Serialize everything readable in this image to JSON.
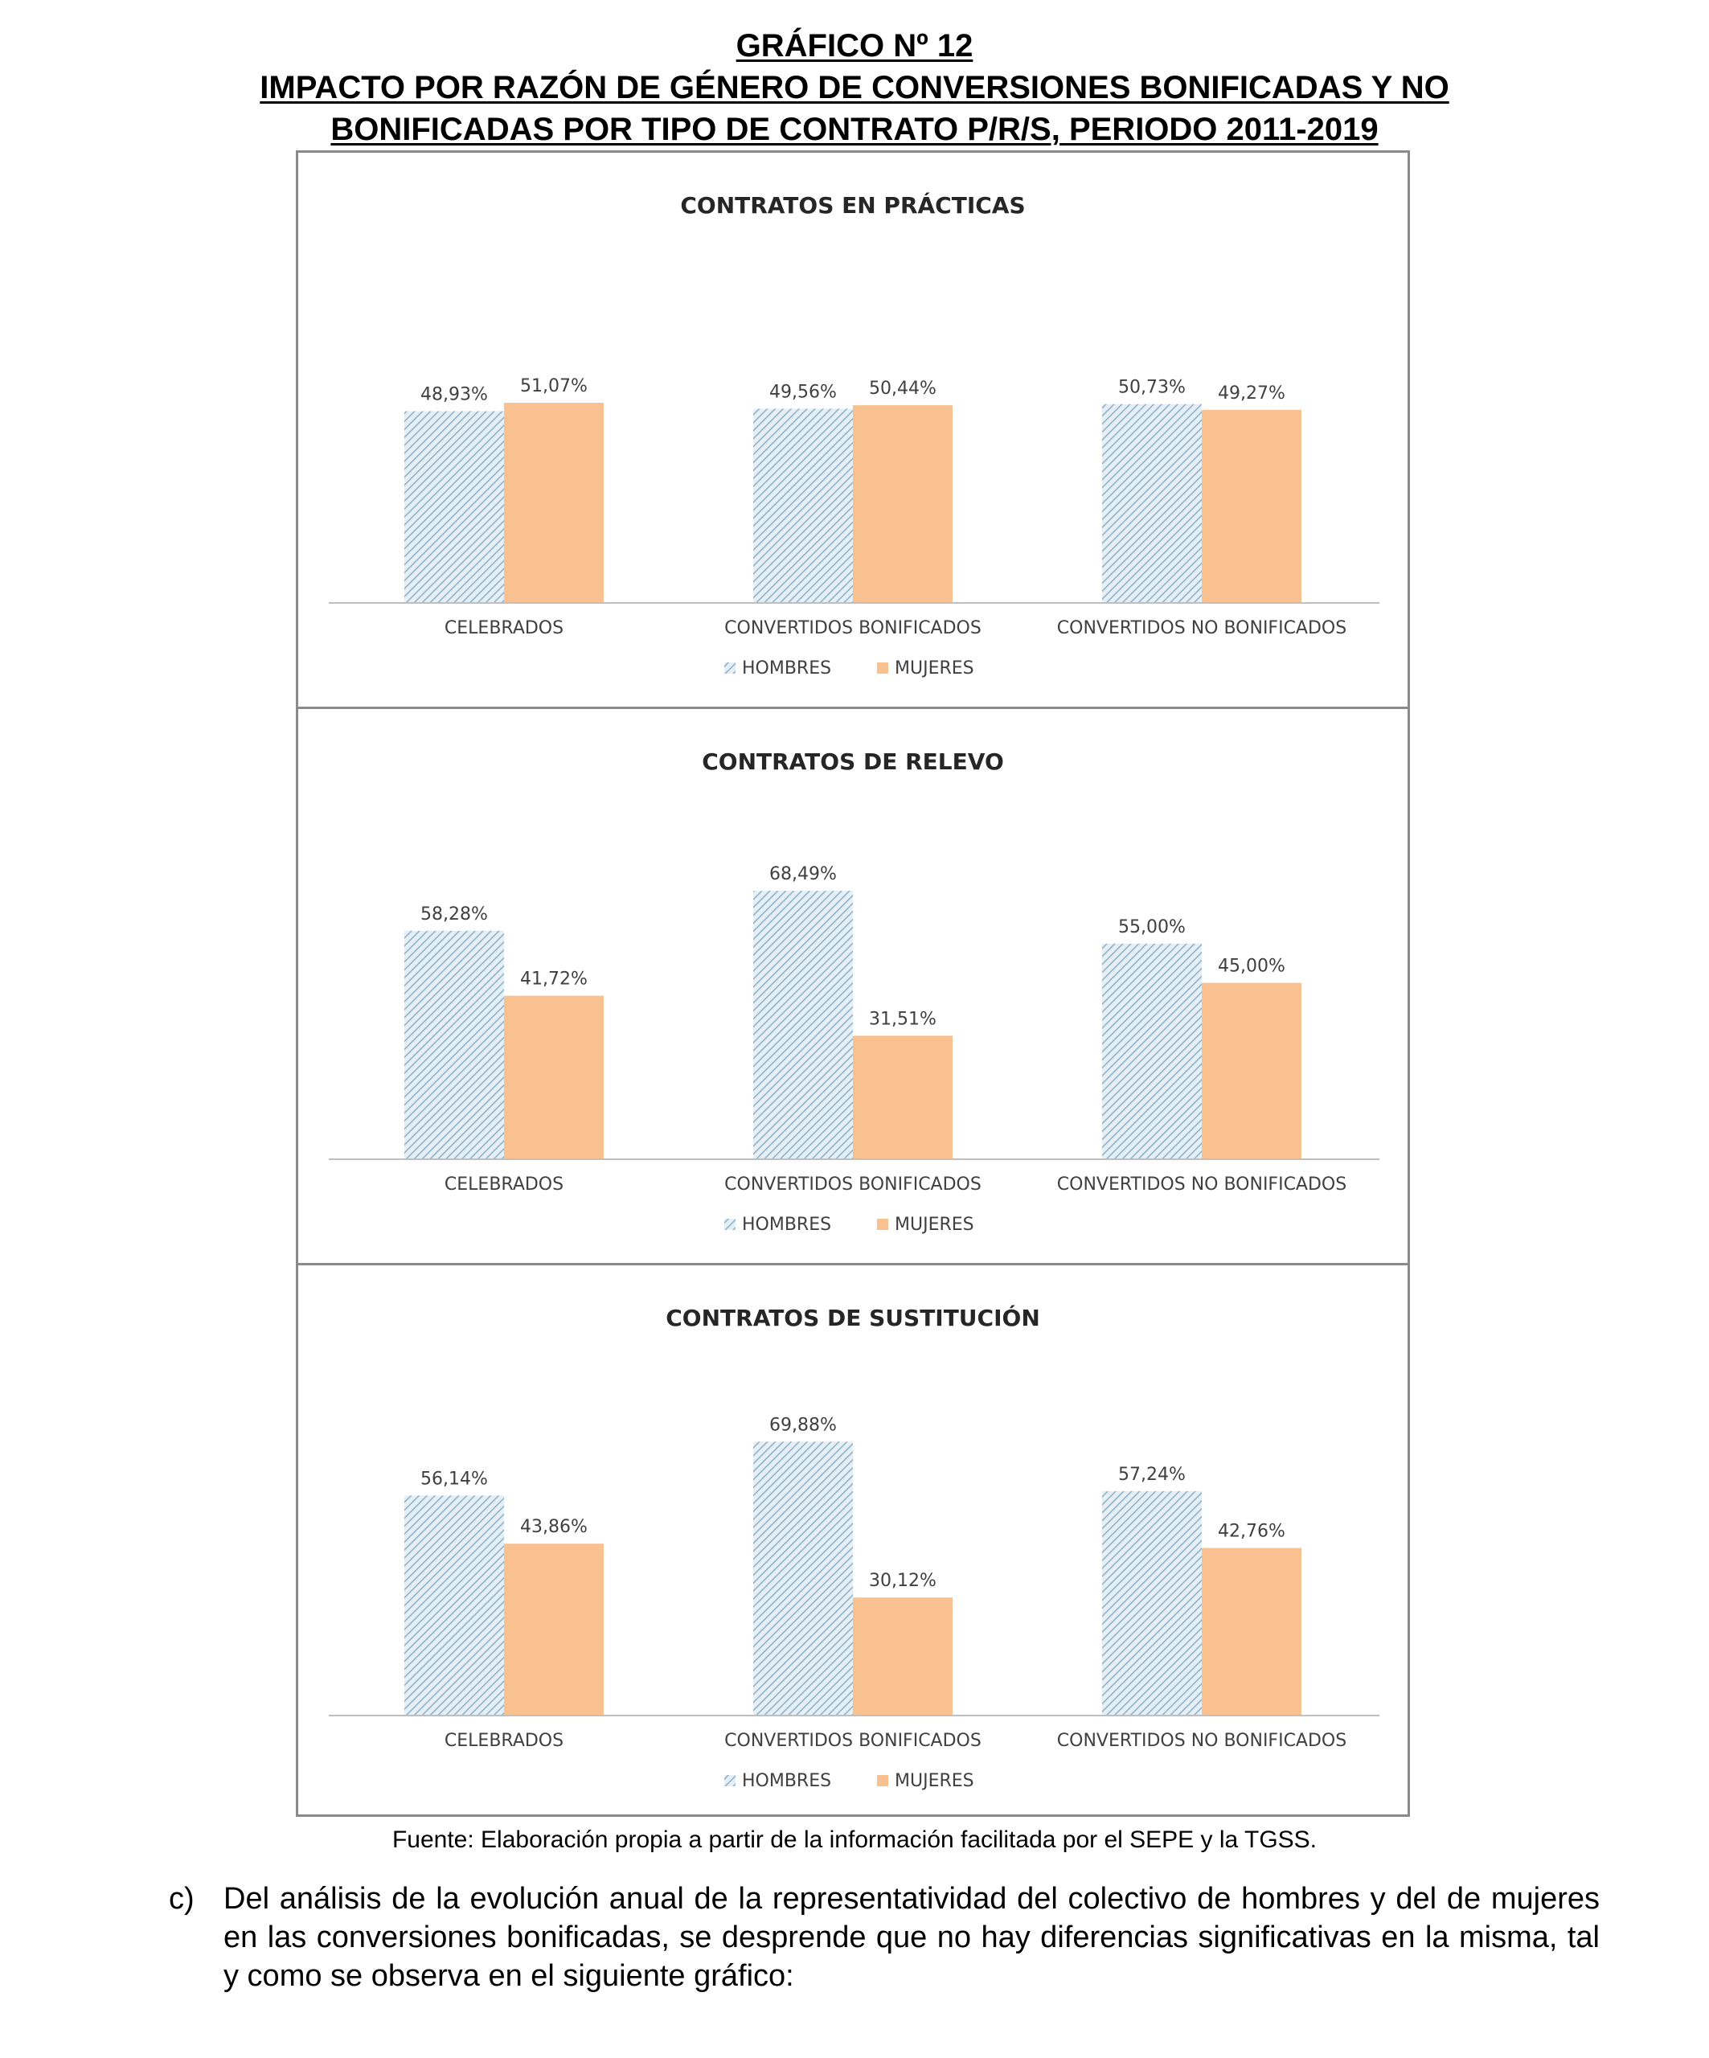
{
  "header": {
    "line1": "GRÁFICO Nº 12",
    "line2": "IMPACTO POR RAZÓN DE GÉNERO DE CONVERSIONES BONIFICADAS Y NO",
    "line3": "BONIFICADAS POR TIPO DE CONTRATO P/R/S, PERIODO 2011-2019"
  },
  "colors": {
    "hombres": "#8fb3c9",
    "hombres_bg": "#e6eff5",
    "mujeres": "#f8c18f",
    "axis": "#bfbfbf"
  },
  "chart_data": [
    {
      "type": "bar",
      "title": "CONTRATOS EN PRÁCTICAS",
      "categories": [
        "CELEBRADOS",
        "CONVERTIDOS BONIFICADOS",
        "CONVERTIDOS NO BONIFICADOS"
      ],
      "series": [
        {
          "name": "HOMBRES",
          "values": [
            48.93,
            49.56,
            50.73
          ],
          "labels": [
            "48,93%",
            "49,56%",
            "50,73%"
          ]
        },
        {
          "name": "MUJERES",
          "values": [
            51.07,
            50.44,
            49.27
          ],
          "labels": [
            "51,07%",
            "50,44%",
            "49,27%"
          ]
        }
      ],
      "ylim": [
        0,
        80
      ],
      "legend": "bottom"
    },
    {
      "type": "bar",
      "title": "CONTRATOS DE RELEVO",
      "categories": [
        "CELEBRADOS",
        "CONVERTIDOS BONIFICADOS",
        "CONVERTIDOS NO BONIFICADOS"
      ],
      "series": [
        {
          "name": "HOMBRES",
          "values": [
            58.28,
            68.49,
            55.0
          ],
          "labels": [
            "58,28%",
            "68,49%",
            "55,00%"
          ]
        },
        {
          "name": "MUJERES",
          "values": [
            41.72,
            31.51,
            45.0
          ],
          "labels": [
            "41,72%",
            "31,51%",
            "45,00%"
          ]
        }
      ],
      "ylim": [
        0,
        80
      ],
      "legend": "bottom"
    },
    {
      "type": "bar",
      "title": "CONTRATOS DE SUSTITUCIÓN",
      "categories": [
        "CELEBRADOS",
        "CONVERTIDOS BONIFICADOS",
        "CONVERTIDOS NO BONIFICADOS"
      ],
      "series": [
        {
          "name": "HOMBRES",
          "values": [
            56.14,
            69.88,
            57.24
          ],
          "labels": [
            "56,14%",
            "69,88%",
            "57,24%"
          ]
        },
        {
          "name": "MUJERES",
          "values": [
            43.86,
            30.12,
            42.76
          ],
          "labels": [
            "43,86%",
            "30,12%",
            "42,76%"
          ]
        }
      ],
      "ylim": [
        0,
        80
      ],
      "legend": "bottom"
    }
  ],
  "source": "Fuente: Elaboración propia a partir de la información facilitada por el SEPE y la TGSS.",
  "paragraph": {
    "marker": "c)",
    "text": "Del análisis de la evolución anual de la representatividad del colectivo de hombres y del de mujeres en las conversiones bonificadas, se desprende que no hay diferencias significativas en la misma, tal y como se observa en el siguiente gráfico:"
  }
}
